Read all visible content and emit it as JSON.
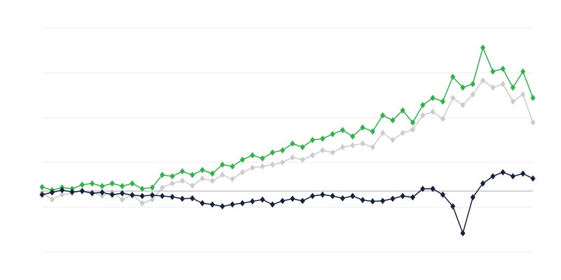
{
  "chart_data": {
    "type": "line",
    "title": "",
    "xlabel": "",
    "ylabel": "",
    "grid": true,
    "legend": "none",
    "xlim": [
      0,
      49
    ],
    "ylim": [
      -1,
      4
    ],
    "gridlines": [
      -1,
      0,
      1,
      2,
      3,
      4
    ],
    "reference_line": 0.36,
    "marker": "diamond",
    "x": [
      0,
      1,
      2,
      3,
      4,
      5,
      6,
      7,
      8,
      9,
      10,
      11,
      12,
      13,
      14,
      15,
      16,
      17,
      18,
      19,
      20,
      21,
      22,
      23,
      24,
      25,
      26,
      27,
      28,
      29,
      30,
      31,
      32,
      33,
      34,
      35,
      36,
      37,
      38,
      39,
      40,
      41,
      42,
      43,
      44,
      45,
      46,
      47,
      48,
      49
    ],
    "series": [
      {
        "color": "#33b04a",
        "values": [
          0.45,
          0.38,
          0.44,
          0.41,
          0.5,
          0.53,
          0.47,
          0.53,
          0.47,
          0.53,
          0.41,
          0.44,
          0.72,
          0.69,
          0.8,
          0.72,
          0.83,
          0.75,
          0.95,
          0.91,
          1.06,
          1.16,
          1.09,
          1.22,
          1.27,
          1.42,
          1.34,
          1.5,
          1.53,
          1.63,
          1.72,
          1.58,
          1.78,
          1.69,
          2.05,
          1.94,
          2.16,
          1.89,
          2.28,
          2.44,
          2.36,
          2.91,
          2.67,
          2.75,
          3.56,
          3.03,
          3.09,
          2.67,
          3.03,
          2.44
        ]
      },
      {
        "color": "#cccccc",
        "values": [
          0.33,
          0.17,
          0.28,
          0.31,
          0.38,
          0.33,
          0.25,
          0.33,
          0.17,
          0.28,
          0.09,
          0.17,
          0.44,
          0.53,
          0.59,
          0.48,
          0.64,
          0.59,
          0.72,
          0.63,
          0.78,
          0.88,
          0.91,
          0.95,
          1.0,
          1.11,
          1.06,
          1.16,
          1.27,
          1.22,
          1.34,
          1.38,
          1.42,
          1.34,
          1.66,
          1.5,
          1.66,
          1.73,
          2.05,
          2.13,
          1.97,
          2.44,
          2.28,
          2.52,
          2.83,
          2.67,
          2.75,
          2.36,
          2.52,
          1.89
        ]
      },
      {
        "color": "#16213d",
        "values": [
          0.28,
          0.33,
          0.38,
          0.34,
          0.36,
          0.31,
          0.33,
          0.28,
          0.31,
          0.27,
          0.25,
          0.27,
          0.25,
          0.23,
          0.19,
          0.2,
          0.09,
          0.06,
          0.02,
          0.06,
          0.09,
          0.13,
          0.17,
          0.06,
          0.14,
          0.19,
          0.14,
          0.25,
          0.28,
          0.25,
          0.2,
          0.25,
          0.16,
          0.13,
          0.14,
          0.19,
          0.25,
          0.22,
          0.41,
          0.41,
          0.28,
          0.02,
          -0.58,
          0.22,
          0.53,
          0.69,
          0.78,
          0.69,
          0.75,
          0.64
        ]
      }
    ],
    "colors": {
      "grid": "#eeeeee",
      "reference": "#aaaaaa"
    }
  }
}
